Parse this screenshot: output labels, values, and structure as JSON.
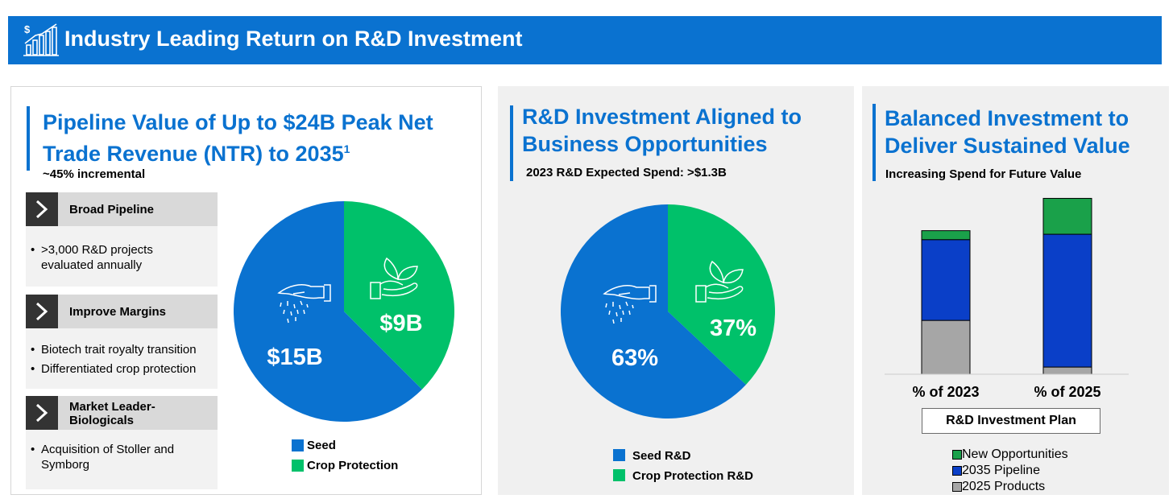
{
  "header": {
    "title": "Industry Leading Return on R&D Investment",
    "icon": "dollar-growth-chart-icon"
  },
  "panel1": {
    "title_line1": "Pipeline Value of Up to $24B Peak Net",
    "title_line2": "Trade Revenue (NTR) to 2035",
    "footnote": "1",
    "subtitle": "~45% incremental",
    "categories": [
      {
        "label": "Broad Pipeline",
        "bullets": [
          ">3,000 R&D projects evaluated annually"
        ]
      },
      {
        "label": "Improve Margins",
        "bullets": [
          "Biotech trait royalty transition",
          "Differentiated crop protection"
        ]
      },
      {
        "label": "Market Leader-Biologicals",
        "bullets": [
          "Acquisition of Stoller and Symborg"
        ]
      }
    ]
  },
  "panel2": {
    "title_line1": "R&D Investment Aligned to",
    "title_line2": "Business Opportunities",
    "subtitle": "2023 R&D Expected Spend: >$1.3B"
  },
  "panel3": {
    "title_line1": "Balanced Investment to",
    "title_line2": "Deliver Sustained Value",
    "subtitle": "Increasing Spend for Future Value",
    "plan_label": "R&D Investment Plan"
  },
  "colors": {
    "brand_blue": "#0A72D0",
    "green": "#00C16A",
    "dark_green": "#1AA14A",
    "navy": "#0A3FC8",
    "gray": "#A6A6A6"
  },
  "chart_data": [
    {
      "type": "pie",
      "title": "Pipeline Value",
      "labels": [
        "Seed",
        "Crop Protection"
      ],
      "values": [
        15,
        9
      ],
      "value_labels": [
        "$15B",
        "$9B"
      ],
      "colors": [
        "#0A72D0",
        "#00C16A"
      ],
      "legend": "bottom"
    },
    {
      "type": "pie",
      "title": "2023 R&D Expected Spend",
      "labels": [
        "Seed R&D",
        "Crop Protection R&D"
      ],
      "values": [
        63,
        37
      ],
      "value_labels": [
        "63%",
        "37%"
      ],
      "colors": [
        "#0A72D0",
        "#00C16A"
      ],
      "legend": "bottom"
    },
    {
      "type": "bar",
      "stacked": true,
      "title": "R&D Investment Plan",
      "categories": [
        "% of 2023",
        "% of 2025"
      ],
      "series": [
        {
          "name": "2025 Products",
          "values": [
            30,
            4
          ],
          "color": "#A6A6A6"
        },
        {
          "name": "2035 Pipeline",
          "values": [
            45,
            74
          ],
          "color": "#0A3FC8"
        },
        {
          "name": "New Opportunities",
          "values": [
            5,
            20
          ],
          "color": "#1AA14A"
        }
      ],
      "ylim": [
        0,
        100
      ],
      "legend_order": [
        "New Opportunities",
        "2035 Pipeline",
        "2025 Products"
      ],
      "legend": "bottom"
    }
  ]
}
